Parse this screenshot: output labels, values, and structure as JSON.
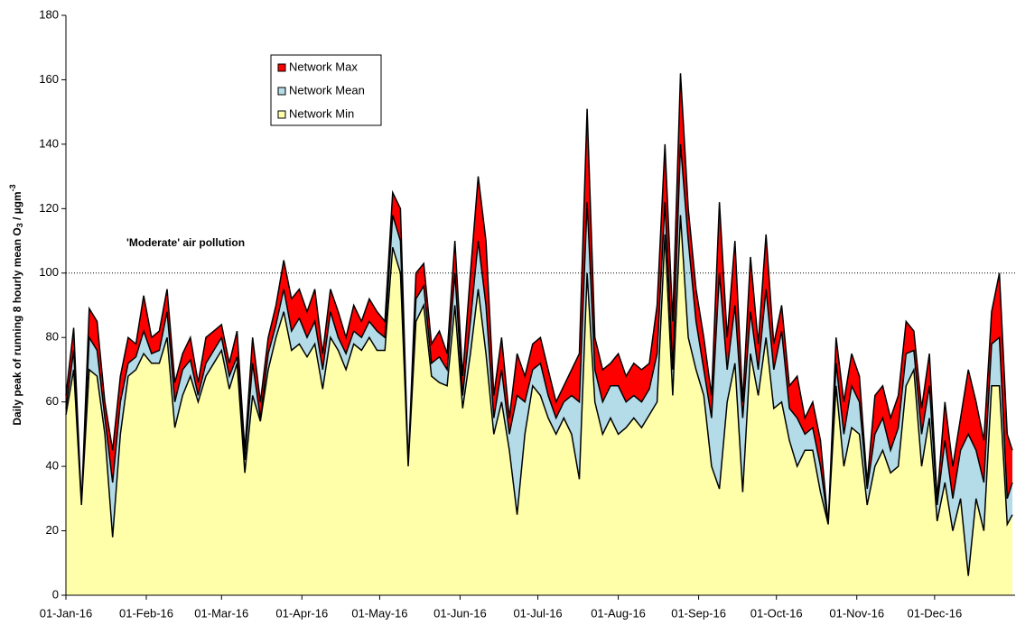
{
  "chart_data": {
    "type": "area",
    "ylabel": [
      "Daily peak of running 8 hourly mean O",
      "3",
      " / µgm",
      "-3"
    ],
    "x": [
      "01-Jan-16",
      "04-Jan-16",
      "07-Jan-16",
      "10-Jan-16",
      "13-Jan-16",
      "16-Jan-16",
      "19-Jan-16",
      "22-Jan-16",
      "25-Jan-16",
      "28-Jan-16",
      "31-Jan-16",
      "03-Feb-16",
      "06-Feb-16",
      "09-Feb-16",
      "12-Feb-16",
      "15-Feb-16",
      "18-Feb-16",
      "21-Feb-16",
      "24-Feb-16",
      "27-Feb-16",
      "01-Mar-16",
      "04-Mar-16",
      "07-Mar-16",
      "10-Mar-16",
      "13-Mar-16",
      "16-Mar-16",
      "19-Mar-16",
      "22-Mar-16",
      "25-Mar-16",
      "28-Mar-16",
      "31-Mar-16",
      "03-Apr-16",
      "06-Apr-16",
      "09-Apr-16",
      "12-Apr-16",
      "15-Apr-16",
      "18-Apr-16",
      "21-Apr-16",
      "24-Apr-16",
      "27-Apr-16",
      "30-Apr-16",
      "03-May-16",
      "06-May-16",
      "09-May-16",
      "12-May-16",
      "15-May-16",
      "18-May-16",
      "21-May-16",
      "24-May-16",
      "27-May-16",
      "30-May-16",
      "02-Jun-16",
      "05-Jun-16",
      "08-Jun-16",
      "11-Jun-16",
      "14-Jun-16",
      "17-Jun-16",
      "20-Jun-16",
      "23-Jun-16",
      "26-Jun-16",
      "29-Jun-16",
      "02-Jul-16",
      "05-Jul-16",
      "08-Jul-16",
      "11-Jul-16",
      "14-Jul-16",
      "17-Jul-16",
      "20-Jul-16",
      "23-Jul-16",
      "26-Jul-16",
      "29-Jul-16",
      "01-Aug-16",
      "04-Aug-16",
      "07-Aug-16",
      "10-Aug-16",
      "13-Aug-16",
      "16-Aug-16",
      "19-Aug-16",
      "22-Aug-16",
      "25-Aug-16",
      "28-Aug-16",
      "31-Aug-16",
      "03-Sep-16",
      "06-Sep-16",
      "09-Sep-16",
      "12-Sep-16",
      "15-Sep-16",
      "18-Sep-16",
      "21-Sep-16",
      "24-Sep-16",
      "27-Sep-16",
      "30-Sep-16",
      "03-Oct-16",
      "06-Oct-16",
      "09-Oct-16",
      "12-Oct-16",
      "15-Oct-16",
      "18-Oct-16",
      "21-Oct-16",
      "24-Oct-16",
      "27-Oct-16",
      "30-Oct-16",
      "02-Nov-16",
      "05-Nov-16",
      "08-Nov-16",
      "11-Nov-16",
      "14-Nov-16",
      "17-Nov-16",
      "20-Nov-16",
      "23-Nov-16",
      "26-Nov-16",
      "29-Nov-16",
      "02-Dec-16",
      "05-Dec-16",
      "08-Dec-16",
      "11-Dec-16",
      "14-Dec-16",
      "17-Dec-16",
      "20-Dec-16",
      "23-Dec-16",
      "26-Dec-16",
      "29-Dec-16",
      "31-Dec-16"
    ],
    "series": [
      {
        "name": "Network Max",
        "color": "#ff0000",
        "values": [
          62,
          83,
          28,
          89,
          85,
          60,
          45,
          68,
          80,
          78,
          93,
          80,
          82,
          95,
          66,
          75,
          80,
          66,
          80,
          82,
          84,
          72,
          82,
          45,
          80,
          60,
          80,
          90,
          104,
          92,
          95,
          88,
          95,
          75,
          95,
          88,
          80,
          90,
          85,
          92,
          88,
          85,
          125,
          120,
          40,
          100,
          103,
          78,
          82,
          75,
          110,
          68,
          100,
          130,
          110,
          62,
          80,
          55,
          75,
          68,
          78,
          80,
          70,
          60,
          65,
          70,
          75,
          151,
          80,
          70,
          72,
          75,
          68,
          72,
          70,
          72,
          90,
          140,
          85,
          162,
          120,
          95,
          80,
          62,
          122,
          80,
          110,
          60,
          105,
          78,
          112,
          78,
          90,
          65,
          68,
          55,
          60,
          48,
          22,
          80,
          60,
          75,
          68,
          35,
          62,
          65,
          55,
          62,
          85,
          82,
          58,
          75,
          30,
          60,
          40,
          55,
          70,
          60,
          48,
          88,
          100,
          50,
          45
        ]
      },
      {
        "name": "Network Mean",
        "color": "#b4dce8",
        "values": [
          58,
          76,
          28,
          80,
          76,
          55,
          35,
          60,
          72,
          74,
          82,
          75,
          76,
          88,
          60,
          70,
          73,
          62,
          72,
          76,
          80,
          68,
          74,
          42,
          72,
          55,
          75,
          84,
          95,
          82,
          86,
          80,
          85,
          70,
          88,
          80,
          75,
          82,
          80,
          85,
          82,
          80,
          118,
          110,
          40,
          92,
          96,
          72,
          74,
          70,
          100,
          62,
          85,
          110,
          90,
          55,
          70,
          50,
          62,
          60,
          70,
          72,
          62,
          55,
          60,
          62,
          60,
          122,
          70,
          60,
          65,
          65,
          60,
          62,
          60,
          64,
          75,
          122,
          70,
          140,
          110,
          85,
          70,
          55,
          100,
          70,
          90,
          55,
          88,
          70,
          95,
          70,
          82,
          58,
          55,
          50,
          52,
          40,
          22,
          72,
          50,
          65,
          60,
          33,
          50,
          55,
          45,
          52,
          75,
          76,
          50,
          65,
          28,
          48,
          30,
          45,
          50,
          45,
          35,
          78,
          80,
          30,
          35
        ]
      },
      {
        "name": "Network Min",
        "color": "#ffffaa",
        "values": [
          56,
          70,
          28,
          70,
          68,
          50,
          18,
          50,
          68,
          70,
          75,
          72,
          72,
          80,
          52,
          62,
          68,
          60,
          68,
          72,
          76,
          64,
          72,
          38,
          62,
          54,
          70,
          80,
          88,
          76,
          78,
          74,
          78,
          64,
          80,
          76,
          70,
          78,
          76,
          80,
          76,
          76,
          108,
          100,
          40,
          85,
          90,
          68,
          66,
          65,
          90,
          58,
          75,
          95,
          75,
          50,
          60,
          45,
          25,
          50,
          65,
          62,
          55,
          50,
          55,
          50,
          36,
          100,
          60,
          50,
          55,
          50,
          52,
          55,
          52,
          56,
          60,
          112,
          62,
          118,
          80,
          70,
          62,
          40,
          33,
          60,
          72,
          32,
          75,
          62,
          80,
          58,
          60,
          48,
          40,
          45,
          45,
          32,
          22,
          65,
          40,
          52,
          50,
          28,
          40,
          45,
          38,
          40,
          65,
          70,
          40,
          55,
          23,
          35,
          20,
          30,
          6,
          30,
          20,
          65,
          65,
          22,
          25
        ]
      }
    ],
    "xlim": [
      "01-Jan-16",
      "31-Dec-16"
    ],
    "xticks": [
      "01-Jan-16",
      "01-Feb-16",
      "01-Mar-16",
      "01-Apr-16",
      "01-May-16",
      "01-Jun-16",
      "01-Jul-16",
      "01-Aug-16",
      "01-Sep-16",
      "01-Oct-16",
      "01-Nov-16",
      "01-Dec-16"
    ],
    "ylim": [
      0,
      180
    ],
    "yticks": [
      0,
      20,
      40,
      60,
      80,
      100,
      120,
      140,
      160,
      180
    ],
    "reference_line": {
      "value": 100,
      "label": "'Moderate' air pollution"
    },
    "legend": "upper-left"
  }
}
